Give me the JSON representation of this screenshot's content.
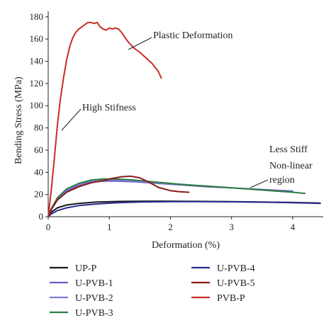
{
  "chart_data": {
    "type": "line",
    "xlabel": "Deformation (%)",
    "ylabel": "Bending Stress (MPa)",
    "xlim": [
      0,
      4.5
    ],
    "ylim": [
      0,
      185
    ],
    "xticks": [
      0,
      1,
      2,
      3,
      4
    ],
    "yticks": [
      0,
      20,
      40,
      60,
      80,
      100,
      120,
      140,
      160,
      180
    ],
    "grid": false,
    "legend_position": "bottom",
    "series": [
      {
        "name": "UP-P",
        "color": "#1a1a1a",
        "x": [
          0,
          0.05,
          0.15,
          0.3,
          0.5,
          0.8,
          1.2,
          1.6,
          2.0,
          2.5,
          3.0,
          3.5,
          4.0,
          4.45
        ],
        "y": [
          0,
          4,
          8,
          10.5,
          12,
          13.2,
          13.8,
          14,
          14,
          13.8,
          13.5,
          13.2,
          12.8,
          12.3
        ]
      },
      {
        "name": "U-PVB-1",
        "color": "#6a5fc4",
        "x": [
          0,
          0.05,
          0.15,
          0.3,
          0.5,
          0.7,
          0.9,
          1.1,
          1.4,
          1.8,
          2.2,
          2.6,
          3.0,
          3.5,
          4.0
        ],
        "y": [
          0,
          6,
          15,
          23,
          28,
          31,
          32,
          32,
          31.5,
          30,
          28.5,
          27,
          26,
          24.5,
          23
        ]
      },
      {
        "name": "U-PVB-2",
        "color": "#7f7bd8",
        "x": [
          0,
          0.05,
          0.15,
          0.3,
          0.5,
          0.7,
          0.9,
          1.1,
          1.4,
          1.8,
          2.2,
          2.6,
          3.0
        ],
        "y": [
          0,
          6,
          16,
          24,
          29.5,
          32,
          33,
          33,
          32,
          30.5,
          29,
          27.5,
          26
        ]
      },
      {
        "name": "U-PVB-3",
        "color": "#2e7d3f",
        "x": [
          0,
          0.05,
          0.15,
          0.3,
          0.5,
          0.7,
          0.9,
          1.1,
          1.4,
          1.8,
          2.2,
          2.6,
          3.0,
          3.5,
          4.0,
          4.2
        ],
        "y": [
          0,
          7,
          17,
          25,
          30,
          33,
          34,
          34,
          33,
          31,
          29,
          27.5,
          26,
          24,
          22,
          21
        ]
      },
      {
        "name": "U-PVB-4",
        "color": "#2c2a8c",
        "x": [
          0,
          0.05,
          0.15,
          0.3,
          0.5,
          0.8,
          1.1,
          1.5,
          2.0,
          2.5,
          3.0,
          3.5,
          4.0,
          4.45
        ],
        "y": [
          0,
          2.5,
          5.5,
          8,
          10,
          11.5,
          12.5,
          13.2,
          13.6,
          13.6,
          13.4,
          13.1,
          12.6,
          12
        ]
      },
      {
        "name": "U-PVB-5",
        "color": "#8b1a1a",
        "x": [
          0,
          0.05,
          0.15,
          0.3,
          0.5,
          0.7,
          0.9,
          1.05,
          1.2,
          1.35,
          1.5,
          1.65,
          1.8,
          2.0,
          2.15,
          2.3
        ],
        "y": [
          0,
          7,
          15,
          22,
          27,
          30.5,
          32.5,
          34.5,
          36,
          36.5,
          35,
          31,
          26.5,
          23.5,
          22.5,
          22
        ]
      },
      {
        "name": "PVB-P",
        "color": "#cc2b24",
        "x": [
          0,
          0.05,
          0.1,
          0.15,
          0.2,
          0.25,
          0.3,
          0.35,
          0.4,
          0.45,
          0.5,
          0.55,
          0.6,
          0.65,
          0.7,
          0.75,
          0.8,
          0.85,
          0.9,
          0.95,
          1.0,
          1.05,
          1.1,
          1.15,
          1.2,
          1.25,
          1.3,
          1.35,
          1.4,
          1.5,
          1.6,
          1.7,
          1.8,
          1.85
        ],
        "y": [
          0,
          24,
          52,
          82,
          106,
          125,
          141,
          153,
          161,
          166,
          169,
          171,
          173,
          175,
          175,
          174,
          175,
          171,
          169,
          168,
          170,
          169,
          170,
          169,
          166,
          162,
          158,
          155,
          152,
          148,
          143,
          138,
          131,
          125
        ]
      }
    ],
    "annotations": [
      {
        "text": "Plastic Deformation",
        "pointer": [
          1.3,
          161
        ]
      },
      {
        "text": "High Stifness",
        "pointer": [
          0.22,
          78
        ]
      },
      {
        "text": "Less Stiff",
        "pointer": null
      },
      {
        "text": "Non-linear",
        "pointer": null
      },
      {
        "text": "region",
        "pointer": [
          3.3,
          26
        ]
      }
    ]
  }
}
